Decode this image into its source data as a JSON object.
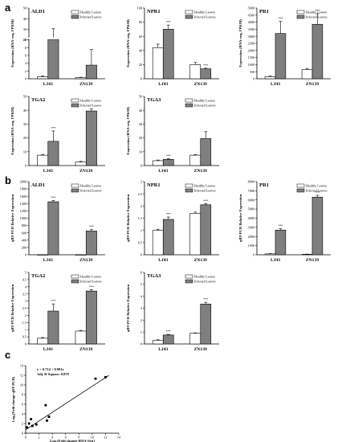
{
  "panel_labels": [
    "a",
    "b",
    "c"
  ],
  "legend": {
    "healthy": "Healthy Leaves",
    "infected": "Infected Leaves"
  },
  "chart_data": [
    {
      "type": "bar",
      "panel": "a",
      "title": "ALD1",
      "ylabel": "Expression (RNA-seq, FPKM)",
      "categories": [
        "LJ43",
        "ZN139"
      ],
      "ylim": [
        0,
        50
      ],
      "yticks": [
        0,
        2,
        4,
        6,
        8,
        10,
        20,
        30,
        40,
        50
      ],
      "ybreak": [
        10,
        20
      ],
      "series": [
        {
          "name": "Healthy Leaves",
          "values": [
            0.5,
            0.3
          ],
          "err": [
            0.2,
            0.1
          ]
        },
        {
          "name": "Infected Leaves",
          "values": [
            20.5,
            3.5
          ],
          "err": [
            10,
            4
          ]
        }
      ]
    },
    {
      "type": "bar",
      "panel": "a",
      "title": "NPR1",
      "ylabel": "Expression (RNA-seq, FPKM)",
      "categories": [
        "LJ43",
        "ZN139"
      ],
      "ylim": [
        0,
        100
      ],
      "yticks": [
        0,
        20,
        40,
        60,
        80,
        100
      ],
      "series": [
        {
          "name": "Healthy Leaves",
          "values": [
            44,
            20
          ],
          "err": [
            5,
            3
          ]
        },
        {
          "name": "Infected Leaves",
          "values": [
            70,
            14
          ],
          "err": [
            6,
            1
          ]
        }
      ],
      "annotations": [
        "***",
        "***"
      ]
    },
    {
      "type": "bar",
      "panel": "a",
      "title": "PR1",
      "ylabel": "Expression (RNA-seq, FPKM)",
      "categories": [
        "LJ43",
        "ZN139"
      ],
      "ylim": [
        0,
        5000
      ],
      "yticks": [
        0,
        500,
        1000,
        1500,
        2000,
        2500,
        3000,
        3500,
        4000,
        4500,
        5000
      ],
      "series": [
        {
          "name": "Healthy Leaves",
          "values": [
            150,
            650
          ],
          "err": [
            50,
            80
          ]
        },
        {
          "name": "Infected Leaves",
          "values": [
            3200,
            3850
          ],
          "err": [
            850,
            750
          ]
        }
      ],
      "annotations": [
        "***",
        "***"
      ]
    },
    {
      "type": "bar",
      "panel": "a",
      "title": "TGA2",
      "ylabel": "Expression (RNA-seq, FPKM)",
      "categories": [
        "LJ43",
        "ZN139"
      ],
      "ylim": [
        0,
        50
      ],
      "yticks": [
        0,
        10,
        20,
        30,
        40,
        50
      ],
      "series": [
        {
          "name": "Healthy Leaves",
          "values": [
            7.5,
            2.5
          ],
          "err": [
            0.5,
            0.5
          ]
        },
        {
          "name": "Infected Leaves",
          "values": [
            17.5,
            39.5
          ],
          "err": [
            7.5,
            1.5
          ]
        }
      ],
      "annotations": [
        "***"
      ]
    },
    {
      "type": "bar",
      "panel": "a",
      "title": "TGA3",
      "ylabel": "Expression (RNA-seq, FPKM)",
      "categories": [
        "LJ43",
        "ZN139"
      ],
      "ylim": [
        0,
        50
      ],
      "yticks": [
        0,
        10,
        20,
        30,
        40,
        50
      ],
      "series": [
        {
          "name": "Healthy Leaves",
          "values": [
            3.5,
            7.5
          ],
          "err": [
            0.5,
            0.5
          ]
        },
        {
          "name": "Infected Leaves",
          "values": [
            4.5,
            19.5
          ],
          "err": [
            0.5,
            5
          ]
        }
      ],
      "annotations": [
        "***"
      ]
    },
    {
      "type": "bar",
      "panel": "b",
      "title": "ALD1",
      "ylabel": "qRT-PCR Relative Expression",
      "categories": [
        "LJ43",
        "ZN139"
      ],
      "ylim": [
        0,
        2000
      ],
      "yticks": [
        0,
        200,
        400,
        600,
        800,
        1000,
        1200,
        1400,
        1600,
        1800,
        2000
      ],
      "series": [
        {
          "name": "Healthy Leaves",
          "values": [
            1.5,
            0.7
          ],
          "err": [
            0.8,
            0.2
          ]
        },
        {
          "name": "Infected Leaves",
          "values": [
            1450,
            650
          ],
          "err": [
            30,
            40
          ]
        }
      ],
      "annotations": [
        "***",
        "***"
      ]
    },
    {
      "type": "bar",
      "panel": "b",
      "title": "NPR1",
      "ylabel": "qRT-PCR Relative Expression",
      "categories": [
        "LJ43",
        "ZN139"
      ],
      "ylim": [
        0,
        3
      ],
      "yticks": [
        0,
        0.5,
        1,
        1.5,
        2,
        2.5,
        3
      ],
      "series": [
        {
          "name": "Healthy Leaves",
          "values": [
            1.0,
            1.7
          ],
          "err": [
            0.05,
            0.05
          ]
        },
        {
          "name": "Infected Leaves",
          "values": [
            1.45,
            2.05
          ],
          "err": [
            0.1,
            0.05
          ]
        }
      ],
      "annotations": [
        "***",
        "***"
      ]
    },
    {
      "type": "bar",
      "panel": "b",
      "title": "PR1",
      "ylabel": "qRT-PCR Relative Expression",
      "categories": [
        "LJ43",
        "ZN139"
      ],
      "ylim": [
        0,
        8000
      ],
      "yticks": [
        0,
        1000,
        2000,
        3000,
        4000,
        5000,
        6000,
        7000,
        8000
      ],
      "series": [
        {
          "name": "Healthy Leaves",
          "values": [
            100,
            50
          ],
          "err": [
            30,
            20
          ]
        },
        {
          "name": "Infected Leaves",
          "values": [
            2700,
            6300
          ],
          "err": [
            150,
            200
          ]
        }
      ],
      "annotations": [
        "***",
        "***"
      ]
    },
    {
      "type": "bar",
      "panel": "b",
      "title": "TGA2",
      "ylabel": "qRT-PCR Relative Expression",
      "categories": [
        "LJ43",
        "ZN139"
      ],
      "ylim": [
        0,
        5
      ],
      "yticks": [
        0,
        0.5,
        1,
        1.5,
        2,
        2.5,
        3,
        3.5,
        4,
        4.5,
        5
      ],
      "series": [
        {
          "name": "Healthy Leaves",
          "values": [
            0.4,
            0.9
          ],
          "err": [
            0.05,
            0.05
          ]
        },
        {
          "name": "Infected Leaves",
          "values": [
            2.3,
            3.7
          ],
          "err": [
            0.5,
            0.1
          ]
        }
      ],
      "annotations": [
        "***",
        "***"
      ]
    },
    {
      "type": "bar",
      "panel": "b",
      "title": "TGA3",
      "ylabel": "qRT-PCR Relative Expression",
      "categories": [
        "LJ43",
        "ZN139"
      ],
      "ylim": [
        0,
        6
      ],
      "yticks": [
        0,
        1,
        2,
        3,
        4,
        5,
        6
      ],
      "series": [
        {
          "name": "Healthy Leaves",
          "values": [
            0.3,
            0.9
          ],
          "err": [
            0.05,
            0.03
          ]
        },
        {
          "name": "Infected Leaves",
          "values": [
            0.75,
            3.35
          ],
          "err": [
            0.05,
            0.15
          ]
        }
      ],
      "annotations": [
        "***",
        "***"
      ]
    },
    {
      "type": "scatter",
      "panel": "c",
      "xlabel": "Log₂(Fold change RNA-Seq)",
      "ylabel": "Log₂(Fold change qRT-PCR)",
      "xlim": [
        0,
        14
      ],
      "ylim": [
        0,
        14
      ],
      "xticks": [
        0,
        2,
        4,
        6,
        8,
        10,
        12,
        14
      ],
      "yticks": [
        0,
        2,
        4,
        6,
        8,
        10,
        12,
        14
      ],
      "equation": "y = 0.714 + 0.901x",
      "r2": "Adj. R-Square: 0.878",
      "x": [
        0.2,
        0.5,
        0.8,
        1.0,
        1.6,
        3.0,
        3.2,
        3.5,
        10.5,
        12.0
      ],
      "y": [
        1.2,
        2.0,
        2.9,
        1.5,
        1.8,
        5.8,
        2.6,
        3.4,
        11.3,
        11.6
      ],
      "fit": {
        "intercept": 0.714,
        "slope": 0.901
      }
    }
  ]
}
